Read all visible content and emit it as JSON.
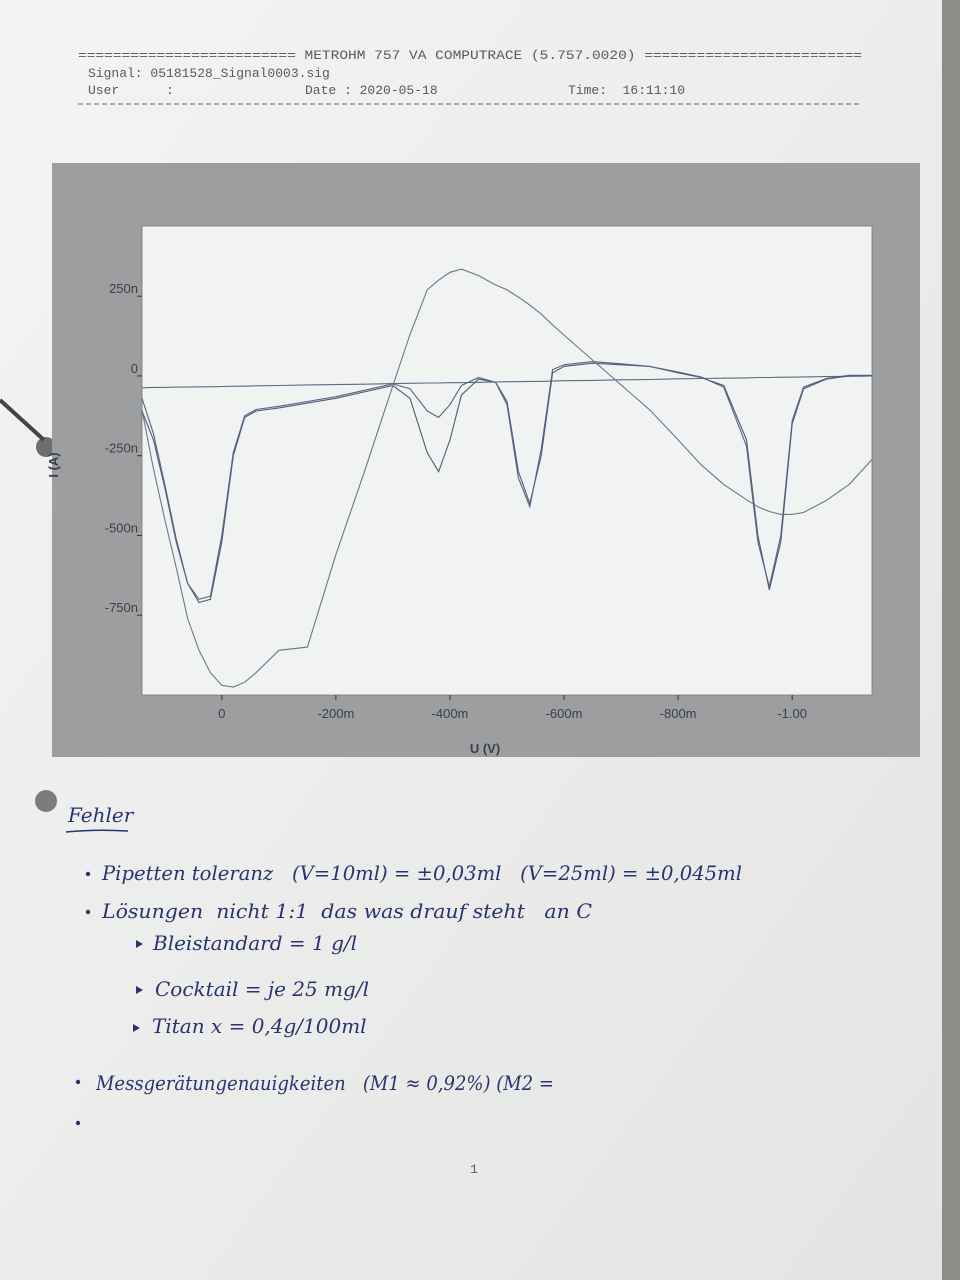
{
  "header": {
    "title": "========================= METROHM 757 VA COMPUTRACE (5.757.0020) =========================",
    "signal": "Signal: 05181528_Signal0003.sig",
    "user": "User      :",
    "date": "Date : 2020-05-18",
    "time": "Time:  16:11:10"
  },
  "chart_data": {
    "type": "line",
    "xlabel": "U (V)",
    "ylabel": "I (A)",
    "xlim": [
      0.14,
      -1.14
    ],
    "ylim": [
      -1e-06,
      4.7e-07
    ],
    "xticks": [
      0,
      {
        "value": -0.2,
        "label": "-200m"
      },
      {
        "value": -0.4,
        "label": "-400m"
      },
      {
        "value": -0.6,
        "label": "-600m"
      },
      {
        "value": -0.8,
        "label": "-800m"
      },
      {
        "value": -1,
        "label": "-1.00"
      }
    ],
    "yticks": [
      {
        "value": 2.5e-07,
        "label": "250n"
      },
      0,
      {
        "value": -2.5e-07,
        "label": "-250n"
      },
      {
        "value": -5e-07,
        "label": "-500n"
      },
      {
        "value": -7.5e-07,
        "label": "-750n"
      }
    ],
    "grid": false,
    "x": [
      0.14,
      0.12,
      0.1,
      0.08,
      0.06,
      0.04,
      0.02,
      0,
      -0.02,
      -0.04,
      -0.06,
      -0.1,
      -0.15,
      -0.2,
      -0.25,
      -0.3,
      -0.33,
      -0.36,
      -0.38,
      -0.4,
      -0.42,
      -0.45,
      -0.48,
      -0.5,
      -0.52,
      -0.54,
      -0.56,
      -0.58,
      -0.6,
      -0.65,
      -0.7,
      -0.75,
      -0.8,
      -0.84,
      -0.88,
      -0.92,
      -0.94,
      -0.96,
      -0.98,
      -1.0,
      -1.02,
      -1.06,
      -1.1,
      -1.14
    ],
    "series": [
      {
        "color": "#5b6a86",
        "values": [
          -3.7e-08,
          -3.6e-08,
          -3.6e-08,
          -3.5e-08,
          -3.5e-08,
          -3.4e-08,
          -3.4e-08,
          -3.3e-08,
          -3.2e-08,
          -3.2e-08,
          -3.1e-08,
          -3e-08,
          -2.8e-08,
          -2.7e-08,
          -2.6e-08,
          -2.4e-08,
          -2.3e-08,
          -2.2e-08,
          -2.2e-08,
          -2.1e-08,
          -2.1e-08,
          -2e-08,
          -1.9e-08,
          -1.8e-08,
          -1.8e-08,
          -1.7e-08,
          -1.7e-08,
          -1.6e-08,
          -1.5e-08,
          -1.4e-08,
          -1.2e-08,
          -1.1e-08,
          -9e-09,
          -8e-09,
          -7e-09,
          -6e-09,
          -5e-09,
          -5e-09,
          -4e-09,
          -4e-09,
          -3e-09,
          -2e-09,
          -1e-09,
          0
        ]
      },
      {
        "color": "#4d5c7a",
        "values": [
          -1.1e-07,
          -2e-07,
          -3.5e-07,
          -5.2e-07,
          -6.5e-07,
          -7.1e-07,
          -7e-07,
          -5.2e-07,
          -2.5e-07,
          -1.3e-07,
          -1.1e-07,
          -1e-07,
          -8.5e-08,
          -7e-08,
          -5e-08,
          -3e-08,
          -7e-08,
          -2.4e-07,
          -3e-07,
          -2e-07,
          -6e-08,
          -1e-08,
          -2e-08,
          -8e-08,
          -3e-07,
          -4e-07,
          -2.5e-07,
          1e-08,
          3e-08,
          4e-08,
          3.5e-08,
          3e-08,
          1e-08,
          -5e-09,
          -3e-08,
          -2e-07,
          -5e-07,
          -6.7e-07,
          -5.2e-07,
          -1.5e-07,
          -4e-08,
          -1e-08,
          0,
          0
        ]
      },
      {
        "color": "#55637f",
        "values": [
          -7e-08,
          -1.8e-07,
          -3.4e-07,
          -5.1e-07,
          -6.5e-07,
          -7e-07,
          -6.9e-07,
          -5e-07,
          -2.4e-07,
          -1.25e-07,
          -1.05e-07,
          -9.5e-08,
          -8e-08,
          -6.5e-08,
          -4.5e-08,
          -2.5e-08,
          -4e-08,
          -1.1e-07,
          -1.3e-07,
          -9e-08,
          -3e-08,
          -5e-09,
          -2e-08,
          -9e-08,
          -3.2e-07,
          -4.1e-07,
          -2.3e-07,
          2e-08,
          3.5e-08,
          4.5e-08,
          3.8e-08,
          3e-08,
          1.2e-08,
          -3e-09,
          -3.5e-08,
          -2.2e-07,
          -5.2e-07,
          -6.6e-07,
          -5e-07,
          -1.4e-07,
          -3.5e-08,
          -8e-09,
          2e-09,
          2e-09
        ]
      },
      {
        "color": "#6a7690",
        "values": [
          -1.06e-07,
          -2.9e-07,
          -4.5e-07,
          -6e-07,
          -7.6e-07,
          -8.6e-07,
          -9.3e-07,
          -9.7e-07,
          -9.75e-07,
          -9.6e-07,
          -9.3e-07,
          -8.6e-07,
          -8.5e-07,
          -5.6e-07,
          -3e-07,
          -3e-08,
          1.3e-07,
          2.7e-07,
          3e-07,
          3.25e-07,
          3.35e-07,
          3.15e-07,
          2.85e-07,
          2.7e-07,
          2.47e-07,
          2.22e-07,
          1.94e-07,
          1.6e-07,
          1.28e-07,
          5e-08,
          -2.8e-08,
          -1.06e-07,
          -2e-07,
          -2.78e-07,
          -3.4e-07,
          -3.88e-07,
          -4.1e-07,
          -4.25e-07,
          -4.34e-07,
          -4.34e-07,
          -4.28e-07,
          -3.9e-07,
          -3.4e-07,
          -2.62e-07
        ]
      }
    ]
  },
  "notes": {
    "heading": "Fehler",
    "items": [
      "Pipetten toleranz   (V=10ml) = ±0,03ml   (V=25ml) = ±0,045ml",
      "Lösungen  nicht 1:1  das was drauf steht   an C",
      "Messgerätungenauigkeiten   (M1 ≈ 0,92%) (M2 ="
    ],
    "subitems": [
      "Bleistandard = 1 g/l",
      "Cocktail = je 25 mg/l",
      "Titan x = 0,4g/100ml"
    ]
  },
  "page_number": "1"
}
